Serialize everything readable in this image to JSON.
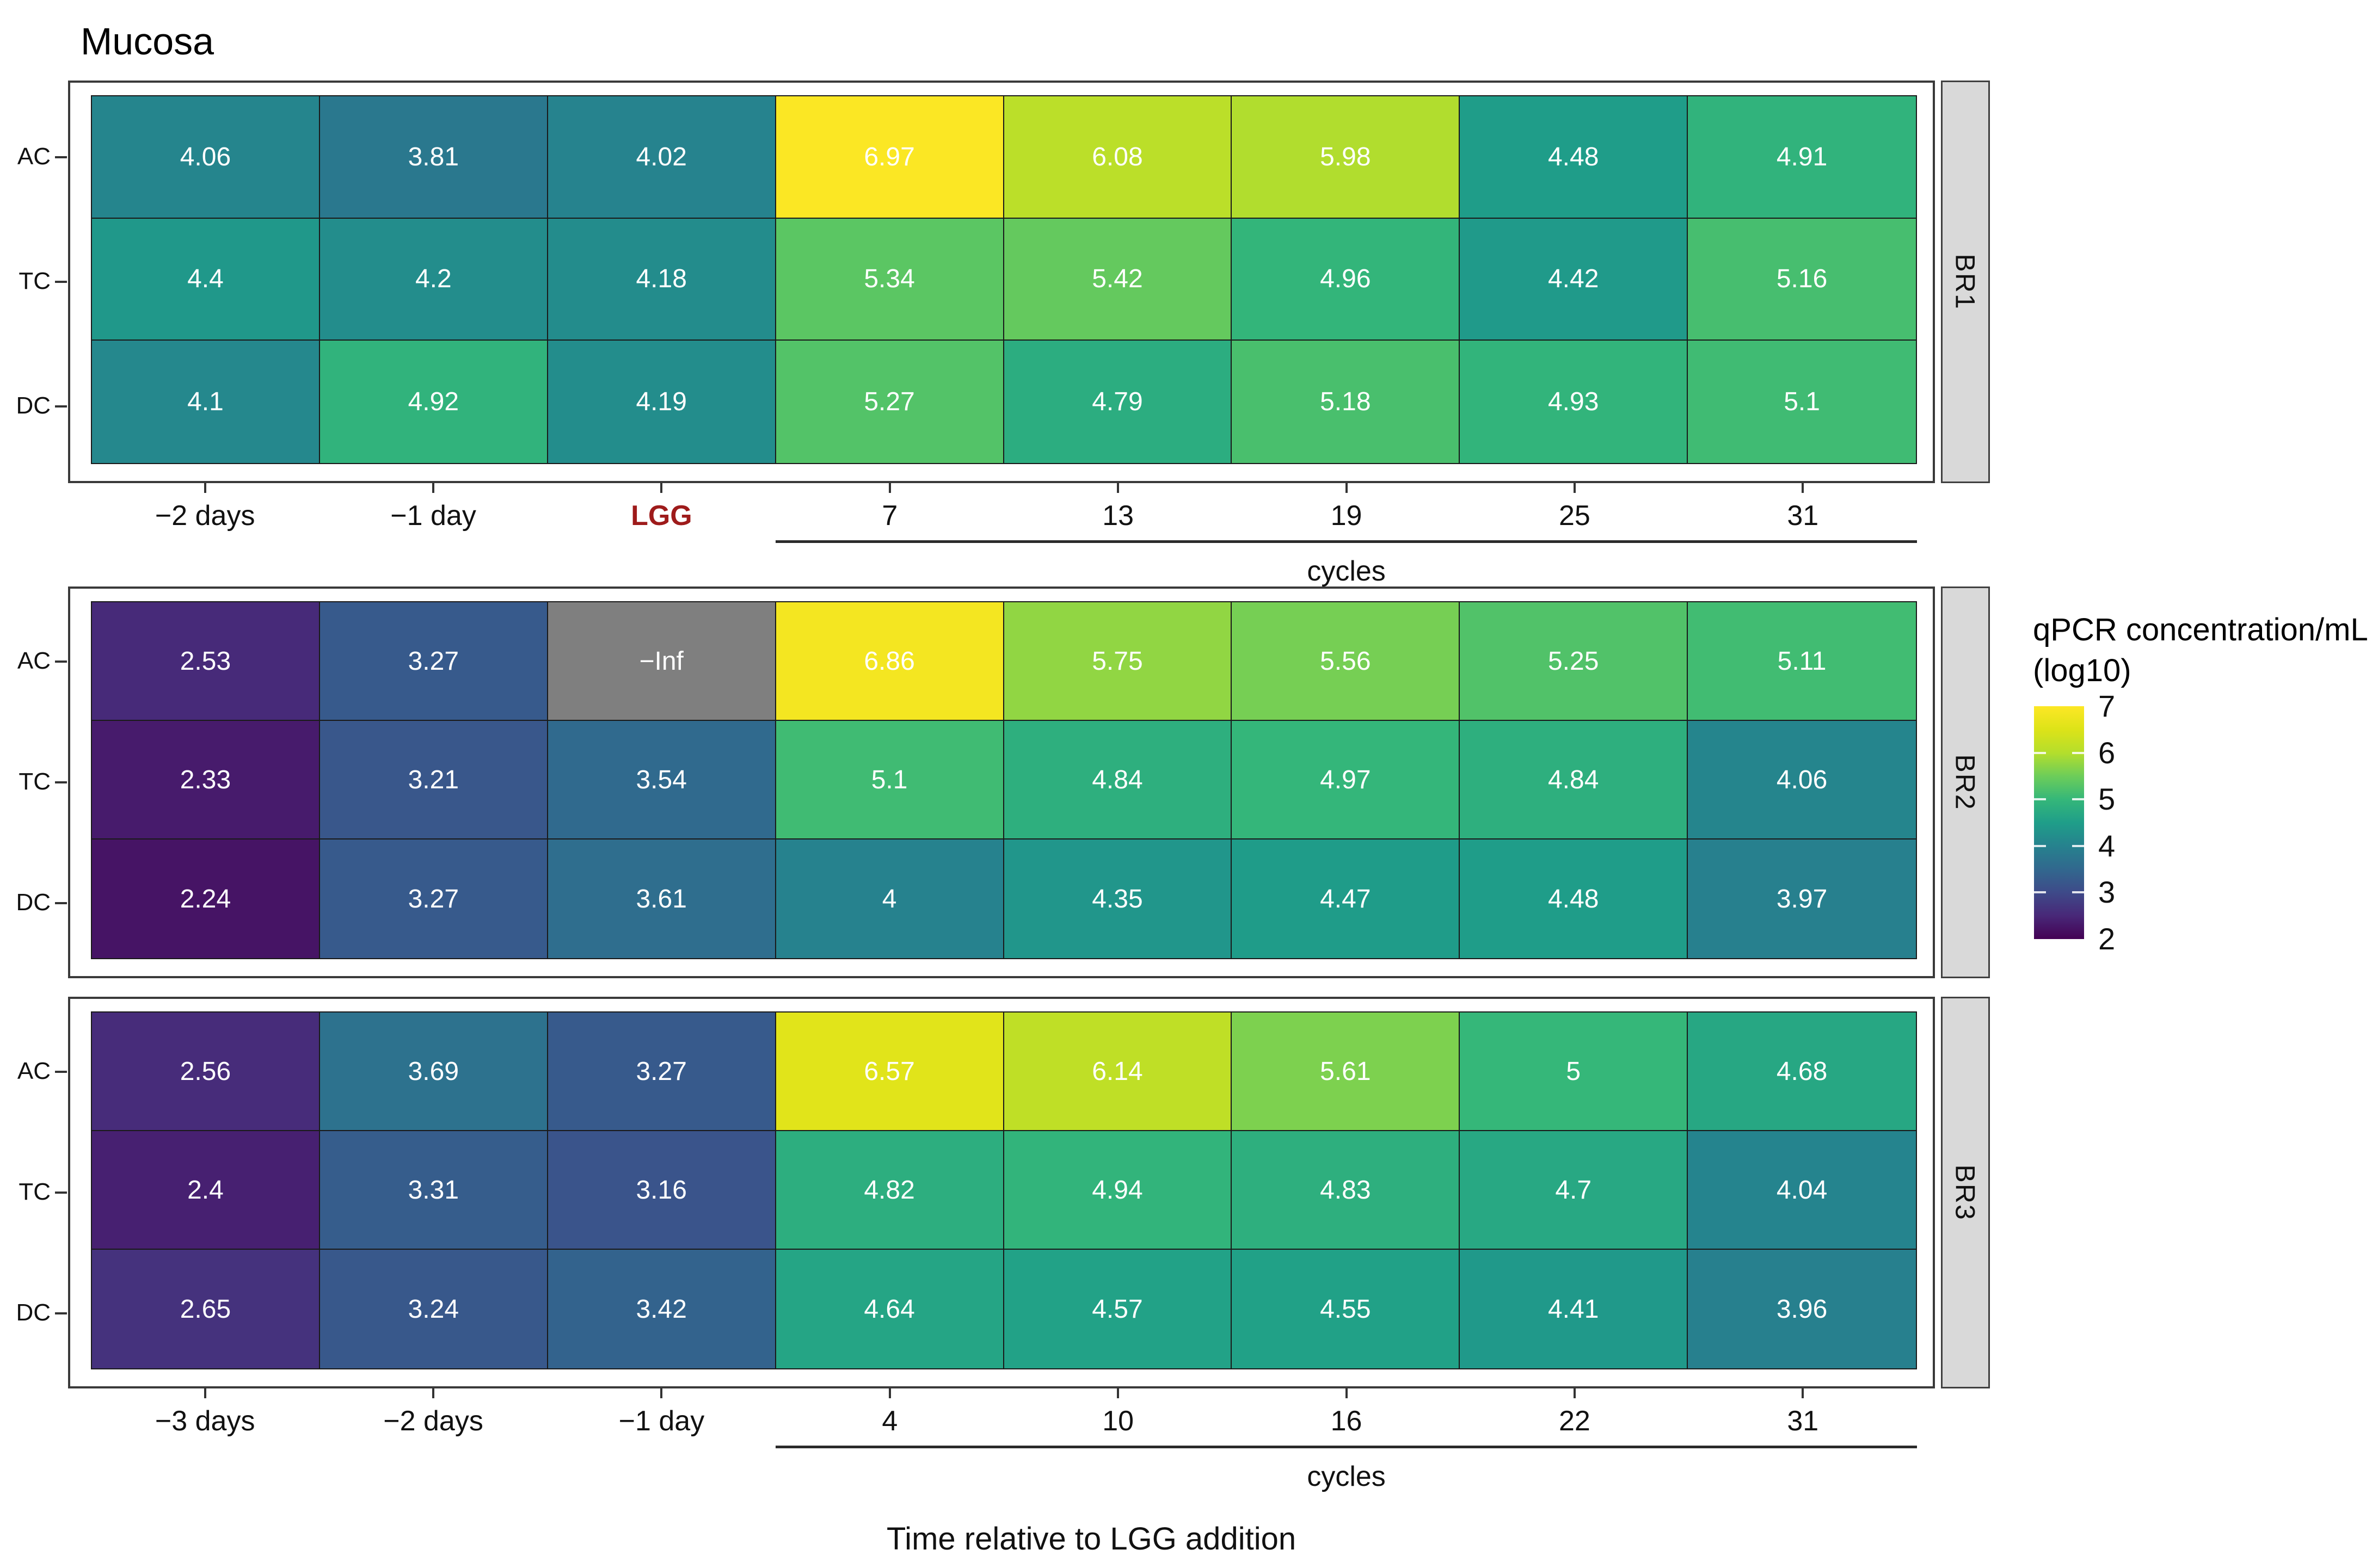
{
  "chart_data": {
    "type": "heatmap",
    "title": "Mucosa",
    "xlabel": "Time relative to LGG addition",
    "cycles_label": "cycles",
    "rows": [
      "AC",
      "TC",
      "DC"
    ],
    "legend": {
      "title_line1": "qPCR concentration/mL",
      "title_line2": "(log10)",
      "ticks": [
        7,
        6,
        5,
        4,
        3,
        2
      ],
      "inner_tick_values": [
        6,
        5,
        4,
        3
      ],
      "domain": [
        2,
        7
      ],
      "na_color": "#7f7f7f",
      "viridis_stops": [
        [
          0.0,
          "#440154"
        ],
        [
          0.1,
          "#482878"
        ],
        [
          0.2,
          "#3e4a89"
        ],
        [
          0.3,
          "#31688e"
        ],
        [
          0.4,
          "#26828e"
        ],
        [
          0.5,
          "#1f9e89"
        ],
        [
          0.6,
          "#35b779"
        ],
        [
          0.7,
          "#6dcd59"
        ],
        [
          0.8,
          "#b4de2c"
        ],
        [
          0.9,
          "#dde318"
        ],
        [
          1.0,
          "#fde725"
        ]
      ]
    },
    "facets": [
      {
        "name": "BR1",
        "show_x_axis": true,
        "x_labels": [
          "−2 days",
          "−1 day",
          "LGG",
          "7",
          "13",
          "19",
          "25",
          "31"
        ],
        "highlight_label": "LGG",
        "cycles_start_col": 3,
        "values": [
          [
            4.06,
            3.81,
            4.02,
            6.97,
            6.08,
            5.98,
            4.48,
            4.91
          ],
          [
            4.4,
            4.2,
            4.18,
            5.34,
            5.42,
            4.96,
            4.42,
            5.16
          ],
          [
            4.1,
            4.92,
            4.19,
            5.27,
            4.79,
            5.18,
            4.93,
            5.1
          ]
        ],
        "display": [
          [
            "4.06",
            "3.81",
            "4.02",
            "6.97",
            "6.08",
            "5.98",
            "4.48",
            "4.91"
          ],
          [
            "4.4",
            "4.2",
            "4.18",
            "5.34",
            "5.42",
            "4.96",
            "4.42",
            "5.16"
          ],
          [
            "4.1",
            "4.92",
            "4.19",
            "5.27",
            "4.79",
            "5.18",
            "4.93",
            "5.1"
          ]
        ]
      },
      {
        "name": "BR2",
        "show_x_axis": false,
        "x_labels": [],
        "highlight_label": null,
        "cycles_start_col": 3,
        "values": [
          [
            2.53,
            3.27,
            null,
            6.86,
            5.75,
            5.56,
            5.25,
            5.11
          ],
          [
            2.33,
            3.21,
            3.54,
            5.1,
            4.84,
            4.97,
            4.84,
            4.06
          ],
          [
            2.24,
            3.27,
            3.61,
            4,
            4.35,
            4.47,
            4.48,
            3.97
          ]
        ],
        "display": [
          [
            "2.53",
            "3.27",
            "−Inf",
            "6.86",
            "5.75",
            "5.56",
            "5.25",
            "5.11"
          ],
          [
            "2.33",
            "3.21",
            "3.54",
            "5.1",
            "4.84",
            "4.97",
            "4.84",
            "4.06"
          ],
          [
            "2.24",
            "3.27",
            "3.61",
            "4",
            "4.35",
            "4.47",
            "4.48",
            "3.97"
          ]
        ]
      },
      {
        "name": "BR3",
        "show_x_axis": true,
        "x_labels": [
          "−3 days",
          "−2 days",
          "−1 day",
          "4",
          "10",
          "16",
          "22",
          "31"
        ],
        "highlight_label": null,
        "cycles_start_col": 3,
        "values": [
          [
            2.56,
            3.69,
            3.27,
            6.57,
            6.14,
            5.61,
            5,
            4.68
          ],
          [
            2.4,
            3.31,
            3.16,
            4.82,
            4.94,
            4.83,
            4.7,
            4.04
          ],
          [
            2.65,
            3.24,
            3.42,
            4.64,
            4.57,
            4.55,
            4.41,
            3.96
          ]
        ],
        "display": [
          [
            "2.56",
            "3.69",
            "3.27",
            "6.57",
            "6.14",
            "5.61",
            "5",
            "4.68"
          ],
          [
            "2.4",
            "3.31",
            "3.16",
            "4.82",
            "4.94",
            "4.83",
            "4.7",
            "4.04"
          ],
          [
            "2.65",
            "3.24",
            "3.42",
            "4.64",
            "4.57",
            "4.55",
            "4.41",
            "3.96"
          ]
        ]
      }
    ]
  },
  "colors": {
    "lgg_label": "#9e1b1b",
    "strip_fill": "#d9d9d9",
    "panel_border": "#3a3a3a",
    "cell_border": "#1a1a1a",
    "cell_text": "#ffffff",
    "na_cell": "#7f7f7f"
  }
}
